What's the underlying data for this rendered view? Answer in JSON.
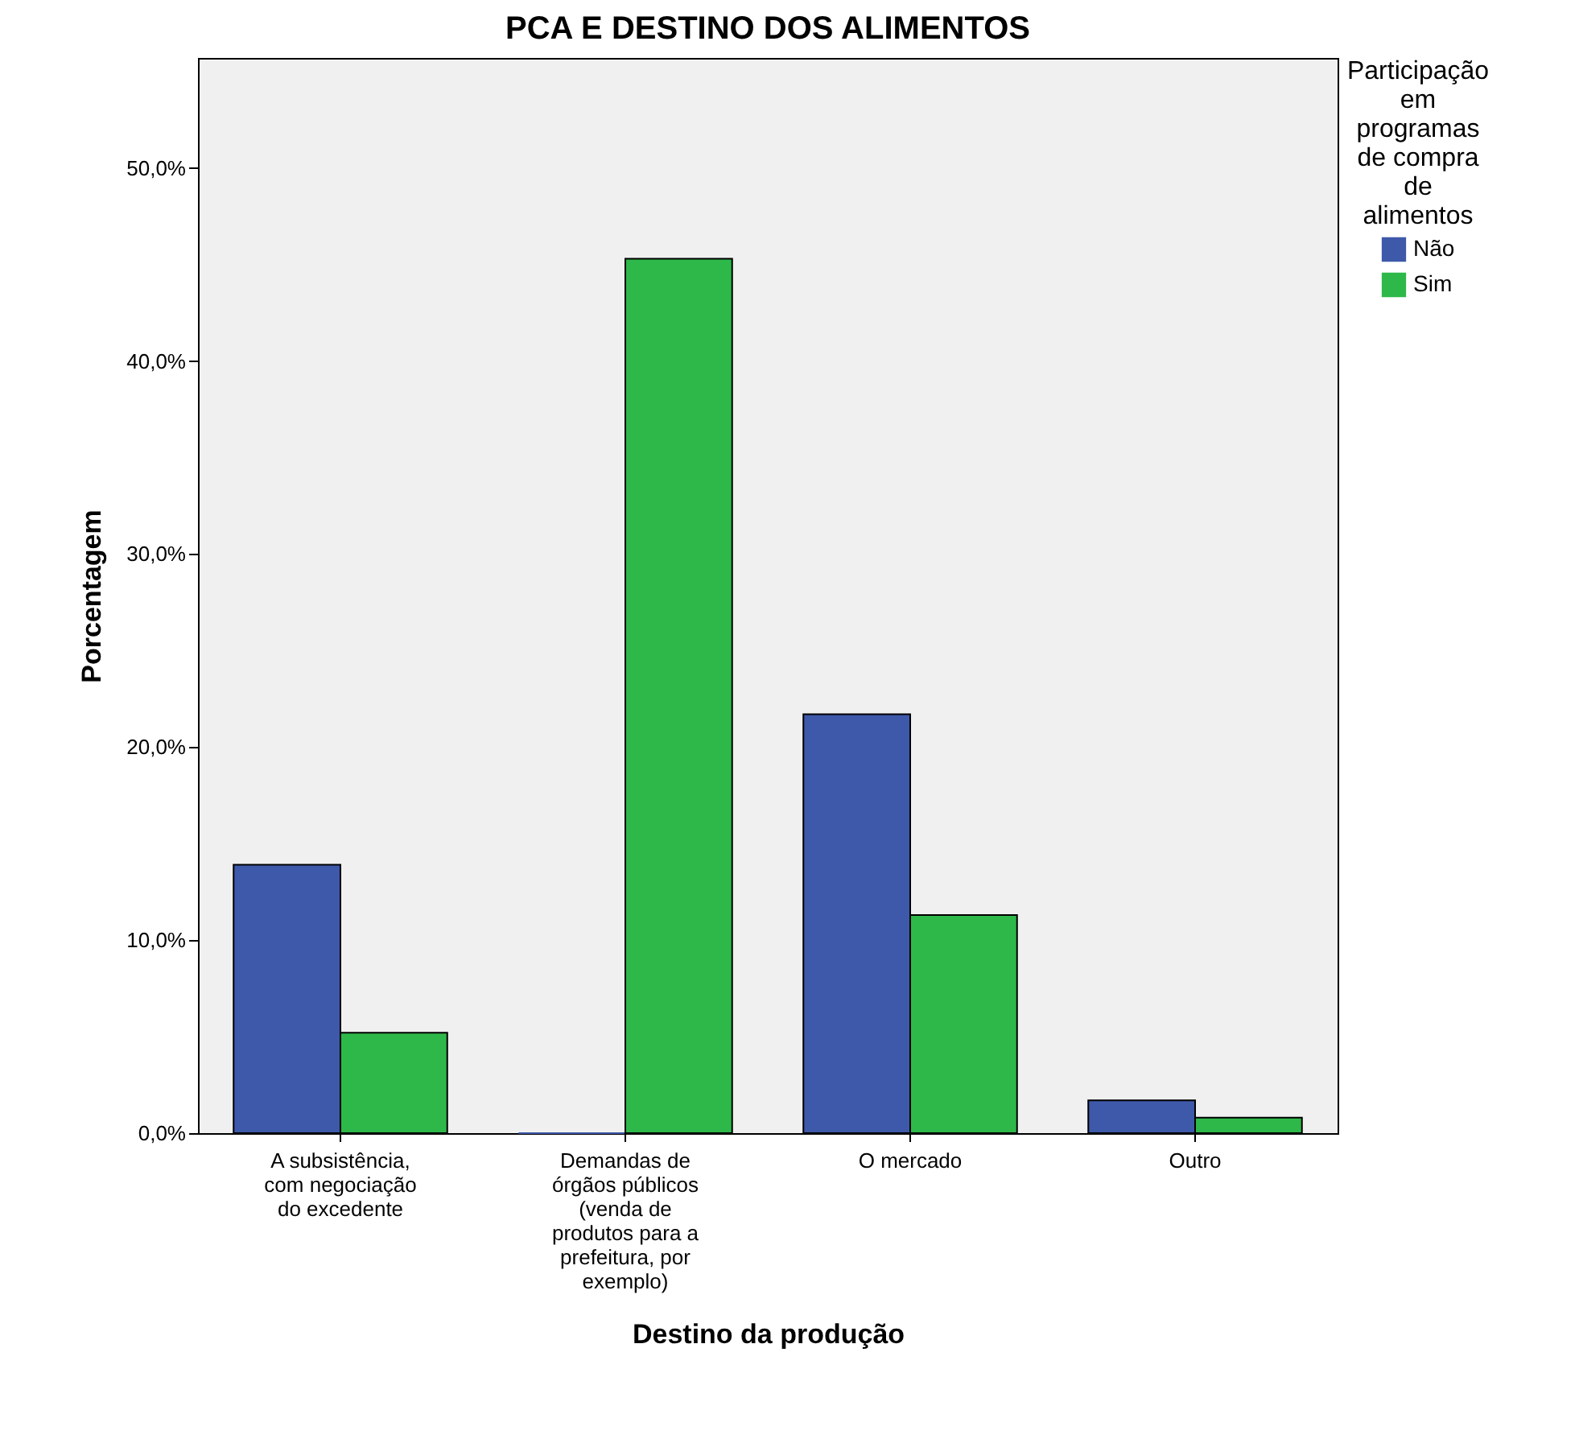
{
  "chart_data": {
    "type": "bar",
    "title": "PCA E DESTINO DOS ALIMENTOS",
    "xlabel": "Destino da produção",
    "ylabel": "Porcentagem",
    "legend_title": "Participação em programas de compra de alimentos",
    "categories": [
      "A subsistência, com negociação do excedente",
      "Demandas de órgãos públicos (venda de produtos para a prefeitura, por exemplo)",
      "O mercado",
      "Outro"
    ],
    "series": [
      {
        "name": "Não",
        "color": "#3e59a9",
        "values": [
          13.9,
          0,
          21.7,
          1.7
        ]
      },
      {
        "name": "Sim",
        "color": "#2eb84a",
        "values": [
          5.2,
          45.3,
          11.3,
          0.8
        ]
      }
    ],
    "ylim": [
      0,
      55.7
    ],
    "yticks": [
      {
        "value": 0,
        "label": "0,0%"
      },
      {
        "value": 10,
        "label": "10,0%"
      },
      {
        "value": 20,
        "label": "20,0%"
      },
      {
        "value": 30,
        "label": "30,0%"
      },
      {
        "value": 40,
        "label": "40,0%"
      },
      {
        "value": 50,
        "label": "50,0%"
      }
    ],
    "grid": false,
    "legend": "top right"
  }
}
